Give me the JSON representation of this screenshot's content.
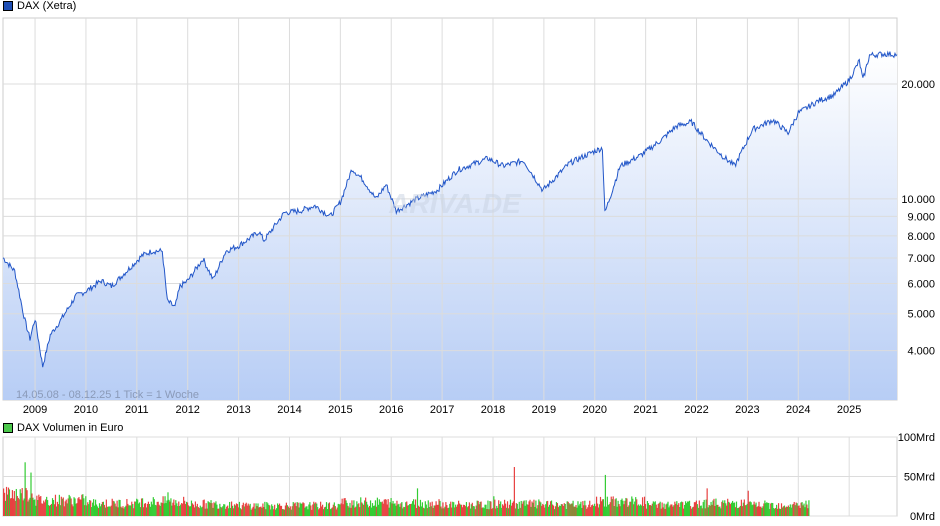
{
  "chart_data": [
    {
      "type": "area",
      "title": "DAX (Xetra)",
      "legend_color": "#1f4fb5",
      "line_color": "#2256c8",
      "yscale": "log",
      "ylim": [
        2970,
        29800
      ],
      "xlim": [
        2008.37,
        2025.94
      ],
      "yticks": [
        {
          "v": 4000,
          "label": "4.000"
        },
        {
          "v": 5000,
          "label": "5.000"
        },
        {
          "v": 6000,
          "label": "6.000"
        },
        {
          "v": 7000,
          "label": "7.000"
        },
        {
          "v": 8000,
          "label": "8.000"
        },
        {
          "v": 9000,
          "label": "9.000"
        },
        {
          "v": 10000,
          "label": "10.000"
        },
        {
          "v": 20000,
          "label": "20.000"
        }
      ],
      "xticks": [
        "2009",
        "2010",
        "2011",
        "2012",
        "2013",
        "2014",
        "2015",
        "2016",
        "2017",
        "2018",
        "2019",
        "2020",
        "2021",
        "2022",
        "2023",
        "2024",
        "2025"
      ],
      "range_label": "14.05.08 - 08.12.25   1 Tick = 1 Woche",
      "watermark": "ARIVA.DE",
      "points": [
        [
          2008.37,
          7010
        ],
        [
          2008.6,
          6470
        ],
        [
          2008.8,
          4800
        ],
        [
          2008.9,
          4300
        ],
        [
          2009.0,
          4850
        ],
        [
          2009.15,
          3640
        ],
        [
          2009.3,
          4400
        ],
        [
          2009.5,
          4800
        ],
        [
          2009.8,
          5560
        ],
        [
          2010.0,
          5730
        ],
        [
          2010.3,
          6100
        ],
        [
          2010.5,
          5900
        ],
        [
          2010.9,
          6670
        ],
        [
          2011.1,
          7100
        ],
        [
          2011.3,
          7300
        ],
        [
          2011.5,
          7300
        ],
        [
          2011.6,
          5400
        ],
        [
          2011.75,
          5200
        ],
        [
          2011.85,
          5900
        ],
        [
          2012.0,
          6100
        ],
        [
          2012.3,
          6970
        ],
        [
          2012.5,
          6150
        ],
        [
          2012.75,
          7300
        ],
        [
          2013.0,
          7530
        ],
        [
          2013.4,
          8200
        ],
        [
          2013.5,
          7780
        ],
        [
          2013.9,
          9200
        ],
        [
          2014.2,
          9300
        ],
        [
          2014.5,
          9600
        ],
        [
          2014.8,
          9000
        ],
        [
          2015.0,
          9800
        ],
        [
          2015.23,
          12000
        ],
        [
          2015.45,
          11200
        ],
        [
          2015.7,
          10000
        ],
        [
          2015.9,
          10900
        ],
        [
          2016.1,
          9300
        ],
        [
          2016.5,
          10000
        ],
        [
          2016.9,
          10530
        ],
        [
          2017.3,
          11900
        ],
        [
          2017.9,
          12770
        ],
        [
          2018.2,
          12200
        ],
        [
          2018.6,
          12600
        ],
        [
          2018.98,
          10530
        ],
        [
          2019.5,
          12400
        ],
        [
          2020.0,
          13350
        ],
        [
          2020.15,
          13600
        ],
        [
          2020.2,
          9200
        ],
        [
          2020.5,
          12200
        ],
        [
          2020.9,
          13000
        ],
        [
          2021.3,
          14250
        ],
        [
          2021.6,
          15500
        ],
        [
          2021.9,
          15900
        ],
        [
          2022.2,
          14250
        ],
        [
          2022.5,
          13000
        ],
        [
          2022.75,
          12200
        ],
        [
          2023.1,
          15200
        ],
        [
          2023.5,
          16100
        ],
        [
          2023.8,
          14900
        ],
        [
          2024.0,
          16800
        ],
        [
          2024.4,
          18100
        ],
        [
          2024.7,
          18700
        ],
        [
          2025.0,
          20500
        ],
        [
          2025.2,
          23000
        ],
        [
          2025.27,
          20500
        ],
        [
          2025.4,
          23800
        ],
        [
          2025.7,
          24000
        ],
        [
          2025.94,
          23900
        ]
      ]
    },
    {
      "type": "bar",
      "title": "DAX Volumen in Euro",
      "legend_color": "#4cc84c",
      "up_color": "#33cc33",
      "down_color": "#e84040",
      "unit": "Mrd",
      "ylim": [
        0,
        100
      ],
      "yticks": [
        {
          "v": 0,
          "label": "0Mrd"
        },
        {
          "v": 50,
          "label": "50Mrd"
        },
        {
          "v": 100,
          "label": "100Mrd"
        }
      ],
      "xlim": [
        2008.37,
        2025.94
      ],
      "volume_end": 2024.2,
      "yearly_avg_volume": [
        [
          2008,
          28
        ],
        [
          2009,
          20
        ],
        [
          2010,
          16
        ],
        [
          2011,
          18
        ],
        [
          2012,
          15
        ],
        [
          2013,
          13
        ],
        [
          2014,
          13
        ],
        [
          2015,
          17
        ],
        [
          2016,
          16
        ],
        [
          2017,
          14
        ],
        [
          2018,
          15
        ],
        [
          2019,
          14
        ],
        [
          2020,
          18
        ],
        [
          2021,
          14
        ],
        [
          2022,
          16
        ],
        [
          2023,
          14
        ],
        [
          2024,
          15
        ]
      ],
      "spikes": [
        [
          2008.8,
          68
        ],
        [
          2008.9,
          55
        ],
        [
          2011.6,
          30
        ],
        [
          2016.5,
          35
        ],
        [
          2018.0,
          25
        ],
        [
          2018.4,
          62
        ],
        [
          2020.2,
          52
        ],
        [
          2022.2,
          35
        ],
        [
          2023.0,
          32
        ]
      ]
    }
  ]
}
